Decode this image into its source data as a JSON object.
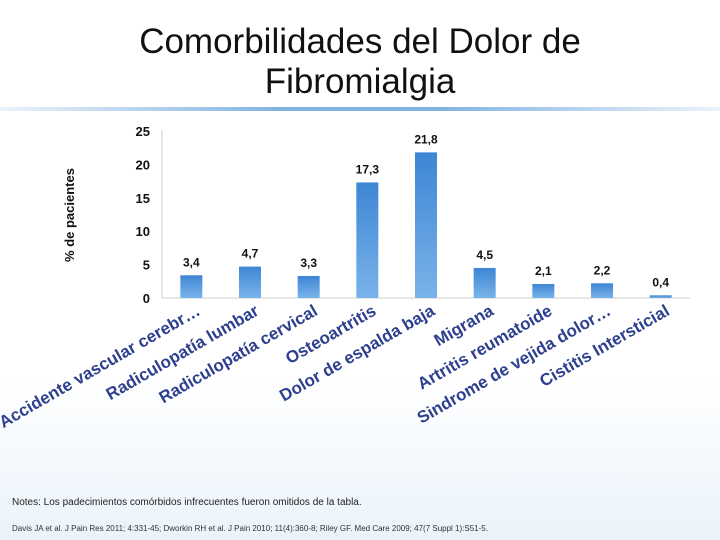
{
  "title": "Comorbilidades del Dolor de Fibromialgia",
  "notes": "Notes: Los padecimientos comórbidos infrecuentes fueron omitidos de la tabla.",
  "citation": "Davis JA et al. J Pain Res 2011; 4:331-45; Dworkin RH et al. J Pain 2010; 11(4):360-8; Riley GF. Med Care 2009; 47(7 Suppl 1):S51-5.",
  "colors": {
    "bar": "#3d86d4",
    "bar_light": "#7ab3ea",
    "title_rule": "#7fb2e0"
  },
  "chart_data": {
    "type": "bar",
    "title": "Comorbilidades del Dolor de Fibromialgia",
    "ylabel": "% de pacientes",
    "xlabel": "",
    "ylim": [
      0,
      25
    ],
    "yticks": [
      "0",
      "5",
      "10",
      "15",
      "20",
      "25"
    ],
    "grid": false,
    "categories": [
      "Accidente vascular cerebr…",
      "Radiculopatía lumbar",
      "Radiculopatía cervical",
      "Osteoartritis",
      "Dolor de espalda baja",
      "Migrana",
      "Artritis reumatoide",
      "Sindrome de vejida dolor…",
      "Cistitis Intersticial"
    ],
    "values": [
      3.4,
      4.7,
      3.3,
      17.3,
      21.8,
      4.5,
      2.1,
      2.2,
      0.4
    ],
    "value_labels": [
      "3,4",
      "4,7",
      "3,3",
      "17,3",
      "21,8",
      "4,5",
      "2,1",
      "2,2",
      "0,4"
    ]
  }
}
